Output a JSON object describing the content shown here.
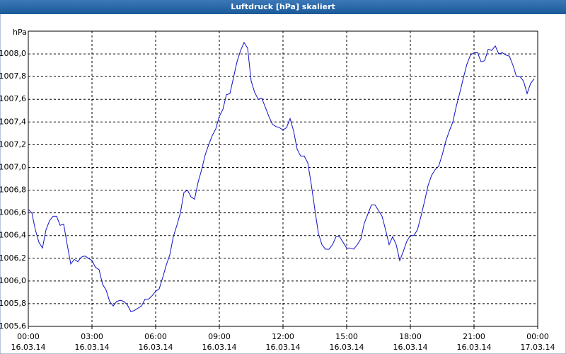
{
  "chart_data": {
    "type": "line",
    "title": "Luftdruck [hPa] skaliert",
    "y_label": "hPa",
    "x": [
      0,
      10,
      20,
      30,
      40,
      50,
      60,
      70,
      80,
      90,
      100,
      110,
      120,
      130,
      140,
      150,
      160,
      170,
      180,
      190,
      200,
      210,
      220,
      230,
      240,
      250,
      260,
      270,
      280,
      290,
      300,
      310,
      320,
      330,
      340,
      350,
      360,
      370,
      380,
      390,
      400,
      410,
      420,
      430,
      440,
      450,
      460,
      470,
      480,
      490,
      500,
      510,
      520,
      530,
      540,
      550,
      560,
      570,
      580,
      590,
      600,
      610,
      620,
      630,
      640,
      650,
      660,
      670,
      680,
      690,
      700,
      710,
      720,
      730,
      740,
      750,
      760,
      770,
      780,
      790,
      800,
      810,
      820,
      830,
      840,
      850,
      860,
      870,
      880,
      890,
      900,
      910,
      920,
      930,
      940,
      950,
      960,
      970,
      980,
      990,
      1000,
      1010,
      1020,
      1030,
      1040,
      1050,
      1060,
      1070,
      1080,
      1090,
      1100,
      1110,
      1120,
      1130,
      1140,
      1150,
      1160,
      1170,
      1180,
      1190,
      1200,
      1210,
      1220,
      1230,
      1240,
      1250,
      1260,
      1270,
      1280,
      1290,
      1300,
      1310,
      1320,
      1330,
      1340,
      1350,
      1360,
      1370,
      1380,
      1390,
      1400,
      1410,
      1420,
      1430
    ],
    "series": [
      {
        "name": "Luftdruck",
        "color": "#1010c8",
        "values": [
          1006.63,
          1006.6,
          1006.45,
          1006.34,
          1006.29,
          1006.45,
          1006.53,
          1006.57,
          1006.57,
          1006.49,
          1006.5,
          1006.32,
          1006.15,
          1006.19,
          1006.17,
          1006.21,
          1006.22,
          1006.2,
          1006.18,
          1006.12,
          1006.1,
          1005.97,
          1005.92,
          1005.82,
          1005.78,
          1005.82,
          1005.83,
          1005.82,
          1005.79,
          1005.73,
          1005.74,
          1005.76,
          1005.78,
          1005.84,
          1005.84,
          1005.87,
          1005.91,
          1005.93,
          1006.03,
          1006.14,
          1006.23,
          1006.39,
          1006.49,
          1006.6,
          1006.78,
          1006.8,
          1006.74,
          1006.72,
          1006.87,
          1006.98,
          1007.11,
          1007.2,
          1007.28,
          1007.34,
          1007.45,
          1007.51,
          1007.64,
          1007.65,
          1007.79,
          1007.93,
          1008.03,
          1008.1,
          1008.05,
          1007.76,
          1007.66,
          1007.6,
          1007.61,
          1007.53,
          1007.45,
          1007.38,
          1007.36,
          1007.35,
          1007.33,
          1007.35,
          1007.43,
          1007.32,
          1007.16,
          1007.1,
          1007.1,
          1007.04,
          1006.85,
          1006.63,
          1006.42,
          1006.32,
          1006.28,
          1006.28,
          1006.32,
          1006.39,
          1006.39,
          1006.34,
          1006.29,
          1006.29,
          1006.28,
          1006.32,
          1006.37,
          1006.51,
          1006.59,
          1006.67,
          1006.67,
          1006.62,
          1006.57,
          1006.45,
          1006.32,
          1006.39,
          1006.32,
          1006.18,
          1006.26,
          1006.35,
          1006.4,
          1006.4,
          1006.45,
          1006.57,
          1006.7,
          1006.84,
          1006.93,
          1006.98,
          1007.01,
          1007.11,
          1007.23,
          1007.32,
          1007.4,
          1007.54,
          1007.66,
          1007.79,
          1007.91,
          1007.99,
          1008.01,
          1008.01,
          1007.93,
          1007.94,
          1008.04,
          1008.03,
          1008.07,
          1008.0,
          1008.01,
          1007.99,
          1007.98,
          1007.9,
          1007.8,
          1007.8,
          1007.76,
          1007.65,
          1007.74,
          1007.78
        ]
      }
    ],
    "xlim": [
      0,
      1440
    ],
    "xticks": [
      {
        "value": 0,
        "label": "00:00",
        "date": "16.03.14"
      },
      {
        "value": 180,
        "label": "03:00",
        "date": "16.03.14"
      },
      {
        "value": 360,
        "label": "06:00",
        "date": "16.03.14"
      },
      {
        "value": 540,
        "label": "09:00",
        "date": "16.03.14"
      },
      {
        "value": 720,
        "label": "12:00",
        "date": "16.03.14"
      },
      {
        "value": 900,
        "label": "15:00",
        "date": "16.03.14"
      },
      {
        "value": 1080,
        "label": "18:00",
        "date": "16.03.14"
      },
      {
        "value": 1260,
        "label": "21:00",
        "date": "16.03.14"
      },
      {
        "value": 1440,
        "label": "00:00",
        "date": "17.03.14"
      }
    ],
    "ylim": [
      1005.6,
      1008.2
    ],
    "yticks": [
      {
        "value": 1005.6,
        "label": "1005,6"
      },
      {
        "value": 1005.8,
        "label": "1005,8"
      },
      {
        "value": 1006.0,
        "label": "1006,0"
      },
      {
        "value": 1006.2,
        "label": "1006,2"
      },
      {
        "value": 1006.4,
        "label": "1006,4"
      },
      {
        "value": 1006.6,
        "label": "1006,6"
      },
      {
        "value": 1006.8,
        "label": "1006,8"
      },
      {
        "value": 1007.0,
        "label": "1007,0"
      },
      {
        "value": 1007.2,
        "label": "1007,2"
      },
      {
        "value": 1007.4,
        "label": "1007,4"
      },
      {
        "value": 1007.6,
        "label": "1007,6"
      },
      {
        "value": 1007.8,
        "label": "1007,8"
      },
      {
        "value": 1008.0,
        "label": "1008,0"
      }
    ],
    "grid": true
  }
}
